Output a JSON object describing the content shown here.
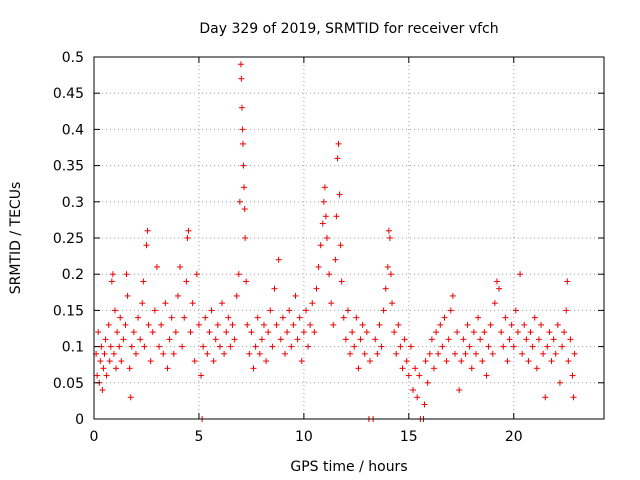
{
  "chart_data": {
    "type": "scatter",
    "title": "Day 329 of 2019, SRMTID for receiver vfch",
    "xlabel": "GPS time / hours",
    "ylabel": "SRMTID / TECUs",
    "xlim": [
      0,
      24.3
    ],
    "ylim": [
      0,
      0.5
    ],
    "xticks": [
      0,
      5,
      10,
      15,
      20
    ],
    "xtick_labels": [
      "0",
      "5",
      "10",
      "15",
      "20"
    ],
    "yticks": [
      0,
      0.05,
      0.1,
      0.15,
      0.2,
      0.25,
      0.3,
      0.35,
      0.4,
      0.45,
      0.5
    ],
    "ytick_labels": [
      "0",
      "0.05",
      "0.1",
      "0.15",
      "0.2",
      "0.25",
      "0.3",
      "0.35",
      "0.4",
      "0.45",
      "0.5"
    ],
    "grid": true,
    "marker": "+",
    "color": "#ee0000",
    "series": [
      {
        "name": "vfch",
        "points": [
          [
            0.1,
            0.09
          ],
          [
            0.15,
            0.06
          ],
          [
            0.2,
            0.12
          ],
          [
            0.25,
            0.05
          ],
          [
            0.3,
            0.08
          ],
          [
            0.35,
            0.1
          ],
          [
            0.4,
            0.04
          ],
          [
            0.45,
            0.07
          ],
          [
            0.5,
            0.09
          ],
          [
            0.55,
            0.11
          ],
          [
            0.6,
            0.06
          ],
          [
            0.7,
            0.13
          ],
          [
            0.75,
            0.08
          ],
          [
            0.8,
            0.1
          ],
          [
            0.85,
            0.19
          ],
          [
            0.9,
            0.2
          ],
          [
            0.95,
            0.09
          ],
          [
            1.0,
            0.15
          ],
          [
            1.05,
            0.07
          ],
          [
            1.1,
            0.12
          ],
          [
            1.2,
            0.1
          ],
          [
            1.25,
            0.14
          ],
          [
            1.3,
            0.08
          ],
          [
            1.4,
            0.11
          ],
          [
            1.5,
            0.13
          ],
          [
            1.55,
            0.2
          ],
          [
            1.6,
            0.17
          ],
          [
            1.7,
            0.07
          ],
          [
            1.75,
            0.03
          ],
          [
            1.8,
            0.1
          ],
          [
            1.9,
            0.12
          ],
          [
            2.0,
            0.09
          ],
          [
            2.1,
            0.14
          ],
          [
            2.2,
            0.11
          ],
          [
            2.3,
            0.16
          ],
          [
            2.35,
            0.19
          ],
          [
            2.4,
            0.1
          ],
          [
            2.5,
            0.24
          ],
          [
            2.55,
            0.26
          ],
          [
            2.6,
            0.13
          ],
          [
            2.7,
            0.08
          ],
          [
            2.8,
            0.12
          ],
          [
            2.9,
            0.15
          ],
          [
            3.0,
            0.21
          ],
          [
            3.1,
            0.1
          ],
          [
            3.2,
            0.13
          ],
          [
            3.3,
            0.09
          ],
          [
            3.4,
            0.16
          ],
          [
            3.5,
            0.07
          ],
          [
            3.6,
            0.11
          ],
          [
            3.7,
            0.14
          ],
          [
            3.8,
            0.09
          ],
          [
            3.9,
            0.12
          ],
          [
            4.0,
            0.17
          ],
          [
            4.1,
            0.21
          ],
          [
            4.2,
            0.1
          ],
          [
            4.3,
            0.14
          ],
          [
            4.4,
            0.19
          ],
          [
            4.45,
            0.25
          ],
          [
            4.5,
            0.26
          ],
          [
            4.6,
            0.12
          ],
          [
            4.7,
            0.16
          ],
          [
            4.8,
            0.08
          ],
          [
            4.9,
            0.2
          ],
          [
            5.0,
            0.13
          ],
          [
            5.1,
            0.06
          ],
          [
            5.15,
            0.0
          ],
          [
            5.2,
            0.1
          ],
          [
            5.3,
            0.14
          ],
          [
            5.4,
            0.09
          ],
          [
            5.5,
            0.12
          ],
          [
            5.6,
            0.15
          ],
          [
            5.7,
            0.08
          ],
          [
            5.8,
            0.11
          ],
          [
            5.9,
            0.13
          ],
          [
            6.0,
            0.1
          ],
          [
            6.1,
            0.16
          ],
          [
            6.2,
            0.09
          ],
          [
            6.3,
            0.12
          ],
          [
            6.4,
            0.14
          ],
          [
            6.5,
            0.1
          ],
          [
            6.6,
            0.13
          ],
          [
            6.7,
            0.11
          ],
          [
            6.8,
            0.17
          ],
          [
            6.9,
            0.2
          ],
          [
            6.95,
            0.3
          ],
          [
            7.0,
            0.49
          ],
          [
            7.02,
            0.47
          ],
          [
            7.05,
            0.43
          ],
          [
            7.08,
            0.4
          ],
          [
            7.1,
            0.38
          ],
          [
            7.12,
            0.35
          ],
          [
            7.15,
            0.32
          ],
          [
            7.18,
            0.29
          ],
          [
            7.2,
            0.25
          ],
          [
            7.25,
            0.19
          ],
          [
            7.3,
            0.13
          ],
          [
            7.4,
            0.09
          ],
          [
            7.5,
            0.12
          ],
          [
            7.6,
            0.07
          ],
          [
            7.7,
            0.1
          ],
          [
            7.8,
            0.14
          ],
          [
            7.9,
            0.09
          ],
          [
            8.0,
            0.11
          ],
          [
            8.1,
            0.13
          ],
          [
            8.2,
            0.08
          ],
          [
            8.3,
            0.12
          ],
          [
            8.4,
            0.15
          ],
          [
            8.5,
            0.1
          ],
          [
            8.6,
            0.18
          ],
          [
            8.7,
            0.13
          ],
          [
            8.8,
            0.22
          ],
          [
            8.9,
            0.11
          ],
          [
            9.0,
            0.14
          ],
          [
            9.1,
            0.09
          ],
          [
            9.2,
            0.12
          ],
          [
            9.3,
            0.15
          ],
          [
            9.4,
            0.1
          ],
          [
            9.5,
            0.13
          ],
          [
            9.6,
            0.17
          ],
          [
            9.7,
            0.11
          ],
          [
            9.8,
            0.14
          ],
          [
            9.9,
            0.08
          ],
          [
            10.0,
            0.12
          ],
          [
            10.1,
            0.15
          ],
          [
            10.2,
            0.1
          ],
          [
            10.3,
            0.13
          ],
          [
            10.4,
            0.16
          ],
          [
            10.5,
            0.12
          ],
          [
            10.6,
            0.18
          ],
          [
            10.7,
            0.21
          ],
          [
            10.8,
            0.24
          ],
          [
            10.9,
            0.27
          ],
          [
            10.95,
            0.3
          ],
          [
            11.0,
            0.32
          ],
          [
            11.05,
            0.28
          ],
          [
            11.1,
            0.25
          ],
          [
            11.2,
            0.2
          ],
          [
            11.3,
            0.16
          ],
          [
            11.4,
            0.13
          ],
          [
            11.5,
            0.22
          ],
          [
            11.55,
            0.28
          ],
          [
            11.6,
            0.36
          ],
          [
            11.65,
            0.38
          ],
          [
            11.7,
            0.31
          ],
          [
            11.75,
            0.24
          ],
          [
            11.8,
            0.19
          ],
          [
            11.9,
            0.14
          ],
          [
            12.0,
            0.11
          ],
          [
            12.1,
            0.15
          ],
          [
            12.2,
            0.09
          ],
          [
            12.3,
            0.12
          ],
          [
            12.4,
            0.1
          ],
          [
            12.5,
            0.14
          ],
          [
            12.6,
            0.07
          ],
          [
            12.7,
            0.11
          ],
          [
            12.8,
            0.13
          ],
          [
            12.9,
            0.09
          ],
          [
            13.0,
            0.12
          ],
          [
            13.1,
            0.0
          ],
          [
            13.15,
            0.08
          ],
          [
            13.3,
            0.0
          ],
          [
            13.4,
            0.11
          ],
          [
            13.5,
            0.09
          ],
          [
            13.6,
            0.13
          ],
          [
            13.7,
            0.1
          ],
          [
            13.8,
            0.15
          ],
          [
            13.9,
            0.18
          ],
          [
            14.0,
            0.21
          ],
          [
            14.05,
            0.26
          ],
          [
            14.1,
            0.25
          ],
          [
            14.15,
            0.2
          ],
          [
            14.2,
            0.16
          ],
          [
            14.3,
            0.12
          ],
          [
            14.4,
            0.09
          ],
          [
            14.5,
            0.13
          ],
          [
            14.6,
            0.1
          ],
          [
            14.7,
            0.07
          ],
          [
            14.8,
            0.11
          ],
          [
            14.9,
            0.08
          ],
          [
            15.0,
            0.06
          ],
          [
            15.1,
            0.1
          ],
          [
            15.2,
            0.04
          ],
          [
            15.3,
            0.07
          ],
          [
            15.4,
            0.03
          ],
          [
            15.5,
            0.06
          ],
          [
            15.55,
            0.0
          ],
          [
            15.7,
            0.0
          ],
          [
            15.75,
            0.02
          ],
          [
            15.8,
            0.08
          ],
          [
            15.9,
            0.05
          ],
          [
            16.0,
            0.09
          ],
          [
            16.1,
            0.11
          ],
          [
            16.2,
            0.07
          ],
          [
            16.3,
            0.12
          ],
          [
            16.4,
            0.09
          ],
          [
            16.5,
            0.13
          ],
          [
            16.6,
            0.1
          ],
          [
            16.7,
            0.14
          ],
          [
            16.8,
            0.08
          ],
          [
            16.9,
            0.11
          ],
          [
            17.0,
            0.15
          ],
          [
            17.1,
            0.17
          ],
          [
            17.2,
            0.09
          ],
          [
            17.3,
            0.12
          ],
          [
            17.4,
            0.04
          ],
          [
            17.5,
            0.08
          ],
          [
            17.6,
            0.11
          ],
          [
            17.7,
            0.09
          ],
          [
            17.8,
            0.13
          ],
          [
            17.9,
            0.1
          ],
          [
            18.0,
            0.07
          ],
          [
            18.1,
            0.12
          ],
          [
            18.2,
            0.09
          ],
          [
            18.3,
            0.14
          ],
          [
            18.4,
            0.11
          ],
          [
            18.5,
            0.08
          ],
          [
            18.6,
            0.12
          ],
          [
            18.7,
            0.06
          ],
          [
            18.8,
            0.1
          ],
          [
            18.9,
            0.13
          ],
          [
            19.0,
            0.09
          ],
          [
            19.1,
            0.16
          ],
          [
            19.2,
            0.19
          ],
          [
            19.3,
            0.18
          ],
          [
            19.4,
            0.12
          ],
          [
            19.5,
            0.1
          ],
          [
            19.6,
            0.14
          ],
          [
            19.7,
            0.08
          ],
          [
            19.8,
            0.11
          ],
          [
            19.9,
            0.13
          ],
          [
            20.0,
            0.1
          ],
          [
            20.1,
            0.15
          ],
          [
            20.2,
            0.12
          ],
          [
            20.3,
            0.2
          ],
          [
            20.4,
            0.09
          ],
          [
            20.5,
            0.13
          ],
          [
            20.6,
            0.11
          ],
          [
            20.7,
            0.08
          ],
          [
            20.8,
            0.12
          ],
          [
            20.9,
            0.1
          ],
          [
            21.0,
            0.14
          ],
          [
            21.1,
            0.07
          ],
          [
            21.2,
            0.11
          ],
          [
            21.3,
            0.13
          ],
          [
            21.4,
            0.09
          ],
          [
            21.5,
            0.03
          ],
          [
            21.6,
            0.1
          ],
          [
            21.7,
            0.12
          ],
          [
            21.8,
            0.08
          ],
          [
            21.9,
            0.11
          ],
          [
            22.0,
            0.09
          ],
          [
            22.1,
            0.13
          ],
          [
            22.2,
            0.05
          ],
          [
            22.3,
            0.1
          ],
          [
            22.4,
            0.12
          ],
          [
            22.5,
            0.15
          ],
          [
            22.55,
            0.19
          ],
          [
            22.6,
            0.08
          ],
          [
            22.7,
            0.11
          ],
          [
            22.8,
            0.06
          ],
          [
            22.85,
            0.03
          ],
          [
            22.9,
            0.09
          ]
        ]
      }
    ]
  }
}
